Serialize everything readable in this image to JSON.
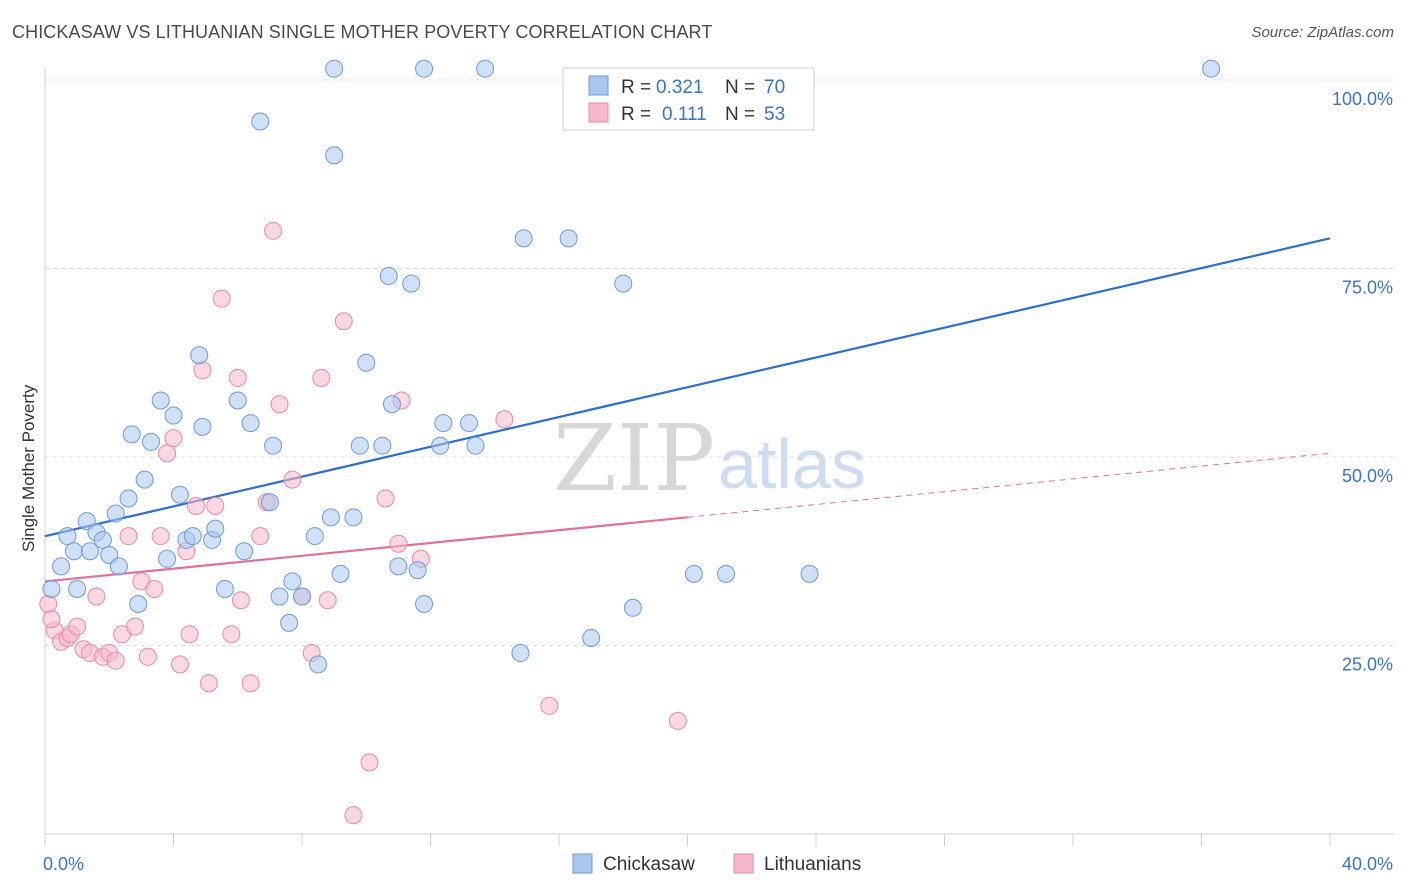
{
  "header": {
    "title": "CHICKASAW VS LITHUANIAN SINGLE MOTHER POVERTY CORRELATION CHART",
    "source": "Source: ZipAtlas.com"
  },
  "watermark": {
    "zip": "ZIP",
    "atlas": "atlas"
  },
  "legend_box": {
    "rows": [
      {
        "r_label": "R =",
        "r_value": "0.321",
        "n_label": "N =",
        "n_value": "70",
        "color": "#a9c7ee"
      },
      {
        "r_label": "R =",
        "r_value": "0.111",
        "n_label": "N =",
        "n_value": "53",
        "color": "#f7b8cb"
      }
    ]
  },
  "bottom_legend": [
    "Chickasaw",
    "Lithuanians"
  ],
  "colors": {
    "chickasaw_fill": "#a9c7ee",
    "chickasaw_stroke": "#6d9bd8",
    "chickasaw_line": "#2f6fcc",
    "lithuanian_fill": "#f7b8cb",
    "lithuanian_stroke": "#e88aa8",
    "lithuanian_line": "#e0719a",
    "tick_text": "#3b74c4",
    "grid": "#dddddd"
  },
  "chart_data": {
    "type": "scatter",
    "title": "CHICKASAW VS LITHUANIAN SINGLE MOTHER POVERTY CORRELATION CHART",
    "xlabel": "",
    "ylabel": "Single Mother Poverty",
    "xlim": [
      0,
      40
    ],
    "ylim": [
      0,
      103
    ],
    "x_tick_labels": [
      "0.0%",
      "40.0%"
    ],
    "y_tick_labels": [
      "25.0%",
      "50.0%",
      "75.0%",
      "100.0%"
    ],
    "y_ticks": [
      25,
      50,
      75,
      100
    ],
    "grid": "horizontal dashed",
    "legend_placement": "top-center",
    "series": [
      {
        "name": "Chickasaw",
        "R": 0.321,
        "N": 70,
        "trend": {
          "x": [
            0,
            40
          ],
          "y": [
            39.5,
            79.0
          ],
          "style": "solid"
        },
        "points": [
          [
            0.2,
            32.5
          ],
          [
            0.5,
            35.5
          ],
          [
            0.7,
            39.5
          ],
          [
            0.9,
            37.5
          ],
          [
            1.0,
            32.5
          ],
          [
            1.3,
            41.5
          ],
          [
            1.4,
            37.5
          ],
          [
            1.6,
            40.0
          ],
          [
            1.8,
            39.0
          ],
          [
            2.0,
            37.0
          ],
          [
            2.2,
            42.5
          ],
          [
            2.3,
            35.5
          ],
          [
            2.6,
            44.5
          ],
          [
            2.7,
            53.0
          ],
          [
            2.9,
            30.5
          ],
          [
            3.1,
            47.0
          ],
          [
            3.3,
            52.0
          ],
          [
            3.6,
            57.5
          ],
          [
            3.8,
            36.5
          ],
          [
            4.0,
            55.5
          ],
          [
            4.2,
            45.0
          ],
          [
            4.4,
            39.0
          ],
          [
            4.6,
            39.5
          ],
          [
            4.8,
            63.5
          ],
          [
            4.9,
            54.0
          ],
          [
            5.2,
            39.0
          ],
          [
            5.3,
            40.5
          ],
          [
            5.6,
            32.5
          ],
          [
            6.0,
            57.5
          ],
          [
            6.2,
            37.5
          ],
          [
            6.4,
            54.5
          ],
          [
            6.7,
            94.5
          ],
          [
            7.0,
            44.0
          ],
          [
            7.1,
            51.5
          ],
          [
            7.3,
            31.5
          ],
          [
            7.6,
            28.0
          ],
          [
            7.7,
            33.5
          ],
          [
            8.0,
            31.5
          ],
          [
            8.4,
            39.5
          ],
          [
            8.5,
            22.5
          ],
          [
            8.9,
            42.0
          ],
          [
            9.0,
            101.5
          ],
          [
            9.0,
            90.0
          ],
          [
            9.2,
            34.5
          ],
          [
            9.6,
            42.0
          ],
          [
            9.8,
            51.5
          ],
          [
            10.0,
            62.5
          ],
          [
            10.5,
            51.5
          ],
          [
            10.7,
            74.0
          ],
          [
            10.8,
            57.0
          ],
          [
            11.0,
            35.5
          ],
          [
            11.4,
            73.0
          ],
          [
            11.6,
            35.0
          ],
          [
            11.8,
            30.5
          ],
          [
            11.8,
            101.5
          ],
          [
            12.3,
            51.5
          ],
          [
            12.4,
            54.5
          ],
          [
            13.2,
            54.5
          ],
          [
            13.4,
            51.5
          ],
          [
            13.7,
            101.5
          ],
          [
            14.8,
            24.0
          ],
          [
            14.9,
            79.0
          ],
          [
            16.3,
            79.0
          ],
          [
            17.0,
            26.0
          ],
          [
            18.0,
            73.0
          ],
          [
            18.3,
            30.0
          ],
          [
            20.2,
            34.5
          ],
          [
            21.2,
            34.5
          ],
          [
            23.8,
            34.5
          ],
          [
            36.3,
            101.5
          ]
        ]
      },
      {
        "name": "Lithuanians",
        "R": 0.111,
        "N": 53,
        "trend_solid": {
          "x": [
            0,
            20
          ],
          "y": [
            33.5,
            42.0
          ]
        },
        "trend_dashed": {
          "x": [
            20,
            40
          ],
          "y": [
            42.0,
            50.5
          ]
        },
        "points": [
          [
            0.1,
            30.5
          ],
          [
            0.3,
            27.0
          ],
          [
            0.5,
            25.5
          ],
          [
            0.7,
            26.0
          ],
          [
            0.8,
            26.5
          ],
          [
            1.0,
            27.5
          ],
          [
            1.2,
            24.5
          ],
          [
            1.4,
            24.0
          ],
          [
            1.6,
            31.5
          ],
          [
            1.8,
            23.5
          ],
          [
            2.0,
            24.0
          ],
          [
            2.2,
            23.0
          ],
          [
            2.4,
            26.5
          ],
          [
            2.6,
            39.5
          ],
          [
            2.8,
            27.5
          ],
          [
            3.0,
            33.5
          ],
          [
            3.2,
            23.5
          ],
          [
            3.4,
            32.5
          ],
          [
            3.6,
            39.5
          ],
          [
            3.8,
            50.5
          ],
          [
            4.0,
            52.5
          ],
          [
            4.2,
            22.5
          ],
          [
            4.4,
            37.5
          ],
          [
            4.5,
            26.5
          ],
          [
            4.7,
            43.5
          ],
          [
            4.9,
            61.5
          ],
          [
            5.1,
            20.0
          ],
          [
            5.3,
            43.5
          ],
          [
            5.5,
            71.0
          ],
          [
            5.8,
            26.5
          ],
          [
            6.0,
            60.5
          ],
          [
            6.1,
            31.0
          ],
          [
            6.4,
            20.0
          ],
          [
            6.7,
            39.5
          ],
          [
            6.9,
            44.0
          ],
          [
            7.1,
            80.0
          ],
          [
            7.3,
            57.0
          ],
          [
            7.7,
            47.0
          ],
          [
            8.0,
            31.5
          ],
          [
            8.3,
            24.0
          ],
          [
            8.6,
            60.5
          ],
          [
            8.8,
            31.0
          ],
          [
            9.3,
            68.0
          ],
          [
            9.6,
            2.5
          ],
          [
            10.1,
            9.5
          ],
          [
            10.6,
            44.5
          ],
          [
            11.0,
            38.5
          ],
          [
            11.1,
            57.5
          ],
          [
            11.7,
            36.5
          ],
          [
            14.3,
            55.0
          ],
          [
            15.7,
            17.0
          ],
          [
            19.7,
            15.0
          ],
          [
            0.2,
            28.5
          ]
        ]
      }
    ]
  }
}
